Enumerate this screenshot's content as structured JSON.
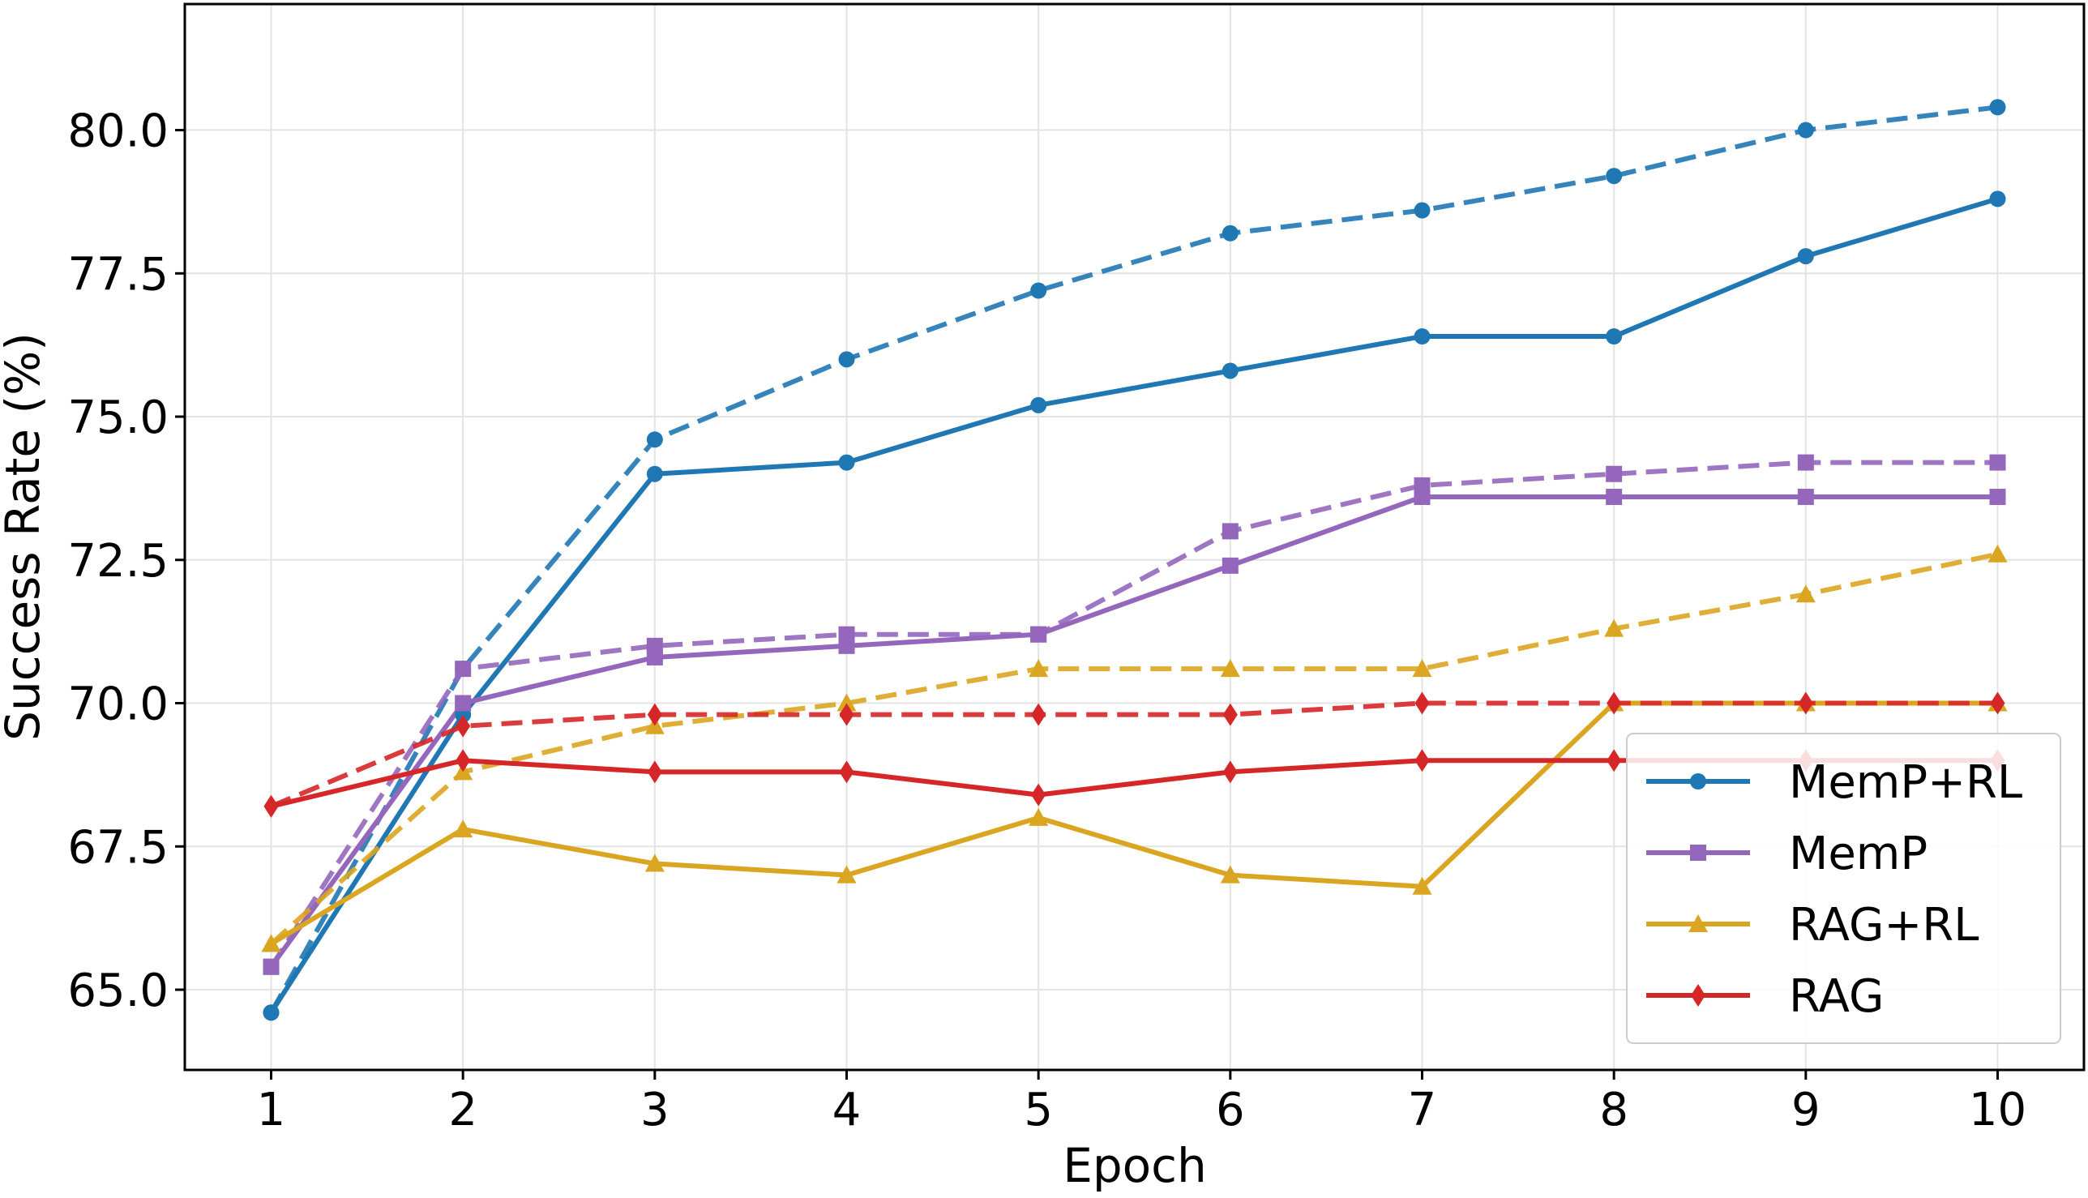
{
  "chart_data": {
    "type": "line",
    "xlabel": "Epoch",
    "ylabel": "Success Rate (%)",
    "x": [
      1,
      2,
      3,
      4,
      5,
      6,
      7,
      8,
      9,
      10
    ],
    "xlim": [
      0.55,
      10.45
    ],
    "ylim": [
      63.6,
      82.2
    ],
    "yticks": [
      "65.0",
      "67.5",
      "70.0",
      "72.5",
      "75.0",
      "77.5",
      "80.0"
    ],
    "xticks": [
      "1",
      "2",
      "3",
      "4",
      "5",
      "6",
      "7",
      "8",
      "9",
      "10"
    ],
    "grid": true,
    "legend_position": "lower-right",
    "series": [
      {
        "name": "MemP+RL",
        "color": "#1f77b4",
        "marker": "circle",
        "style": "solid",
        "values": [
          64.6,
          69.8,
          74.0,
          74.2,
          75.2,
          75.8,
          76.4,
          76.4,
          77.8,
          78.8
        ]
      },
      {
        "name": "MemP+RL",
        "color": "#1f77b4",
        "marker": "circle",
        "style": "dashed",
        "values": [
          64.6,
          70.6,
          74.6,
          76.0,
          77.2,
          78.2,
          78.6,
          79.2,
          80.0,
          80.4
        ]
      },
      {
        "name": "MemP",
        "color": "#9467bd",
        "marker": "square",
        "style": "solid",
        "values": [
          65.4,
          70.0,
          70.8,
          71.0,
          71.2,
          72.4,
          73.6,
          73.6,
          73.6,
          73.6
        ]
      },
      {
        "name": "MemP",
        "color": "#9467bd",
        "marker": "square",
        "style": "dashed",
        "values": [
          65.4,
          70.6,
          71.0,
          71.2,
          71.2,
          73.0,
          73.8,
          74.0,
          74.2,
          74.2
        ]
      },
      {
        "name": "RAG+RL",
        "color": "#daa520",
        "marker": "triangle",
        "style": "solid",
        "values": [
          65.8,
          67.8,
          67.2,
          67.0,
          68.0,
          67.0,
          66.8,
          70.0,
          70.0,
          70.0
        ]
      },
      {
        "name": "RAG+RL",
        "color": "#daa520",
        "marker": "triangle",
        "style": "dashed",
        "values": [
          65.8,
          68.8,
          69.6,
          70.0,
          70.6,
          70.6,
          70.6,
          71.3,
          71.9,
          72.6
        ]
      },
      {
        "name": "RAG",
        "color": "#d62728",
        "marker": "diamond",
        "style": "solid",
        "values": [
          68.2,
          69.0,
          68.8,
          68.8,
          68.4,
          68.8,
          69.0,
          69.0,
          69.0,
          69.0
        ]
      },
      {
        "name": "RAG",
        "color": "#d62728",
        "marker": "diamond",
        "style": "dashed",
        "values": [
          68.2,
          69.6,
          69.8,
          69.8,
          69.8,
          69.8,
          70.0,
          70.0,
          70.0,
          70.0
        ]
      }
    ],
    "legend": [
      {
        "label": "MemP+RL",
        "color": "#1f77b4",
        "marker": "circle"
      },
      {
        "label": "MemP",
        "color": "#9467bd",
        "marker": "square"
      },
      {
        "label": "RAG+RL",
        "color": "#daa520",
        "marker": "triangle"
      },
      {
        "label": "RAG",
        "color": "#d62728",
        "marker": "diamond"
      }
    ]
  }
}
